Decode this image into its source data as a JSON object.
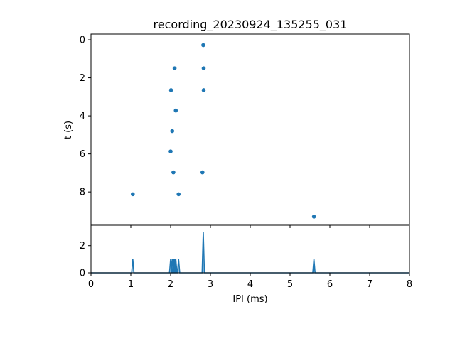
{
  "chart_data": [
    {
      "type": "scatter",
      "title": "recording_20230924_135255_031",
      "ylabel": "t (s)",
      "xlim": [
        0,
        8
      ],
      "ylim": [
        9.75,
        -0.3
      ],
      "y_inverted": true,
      "grid": false,
      "color": "#1f77b4",
      "yticks": [
        "0",
        "2",
        "4",
        "6",
        "8"
      ],
      "x_ticks_labeled": false,
      "points": [
        {
          "x": 2.82,
          "y": 0.28
        },
        {
          "x": 2.1,
          "y": 1.5
        },
        {
          "x": 2.83,
          "y": 1.5
        },
        {
          "x": 2.01,
          "y": 2.65
        },
        {
          "x": 2.83,
          "y": 2.65
        },
        {
          "x": 2.13,
          "y": 3.72
        },
        {
          "x": 2.04,
          "y": 4.8
        },
        {
          "x": 2.0,
          "y": 5.87
        },
        {
          "x": 2.07,
          "y": 6.97
        },
        {
          "x": 2.8,
          "y": 6.97
        },
        {
          "x": 1.05,
          "y": 8.12
        },
        {
          "x": 2.2,
          "y": 8.12
        },
        {
          "x": 5.6,
          "y": 9.3
        }
      ]
    },
    {
      "type": "area",
      "xlabel": "IPI (ms)",
      "xlim": [
        0,
        8
      ],
      "ylim": [
        0,
        3.5
      ],
      "grid": false,
      "color": "#1f77b4",
      "xticks": [
        "0",
        "1",
        "2",
        "3",
        "4",
        "5",
        "6",
        "7",
        "8"
      ],
      "yticks": [
        "0",
        "2"
      ],
      "peaks": [
        {
          "x": 1.05,
          "y": 1.0
        },
        {
          "x": 2.0,
          "y": 1.0
        },
        {
          "x": 2.04,
          "y": 1.0
        },
        {
          "x": 2.07,
          "y": 1.0
        },
        {
          "x": 2.1,
          "y": 1.0
        },
        {
          "x": 2.13,
          "y": 1.0
        },
        {
          "x": 2.2,
          "y": 1.0
        },
        {
          "x": 2.82,
          "y": 3.0
        },
        {
          "x": 5.6,
          "y": 1.0
        }
      ]
    }
  ]
}
